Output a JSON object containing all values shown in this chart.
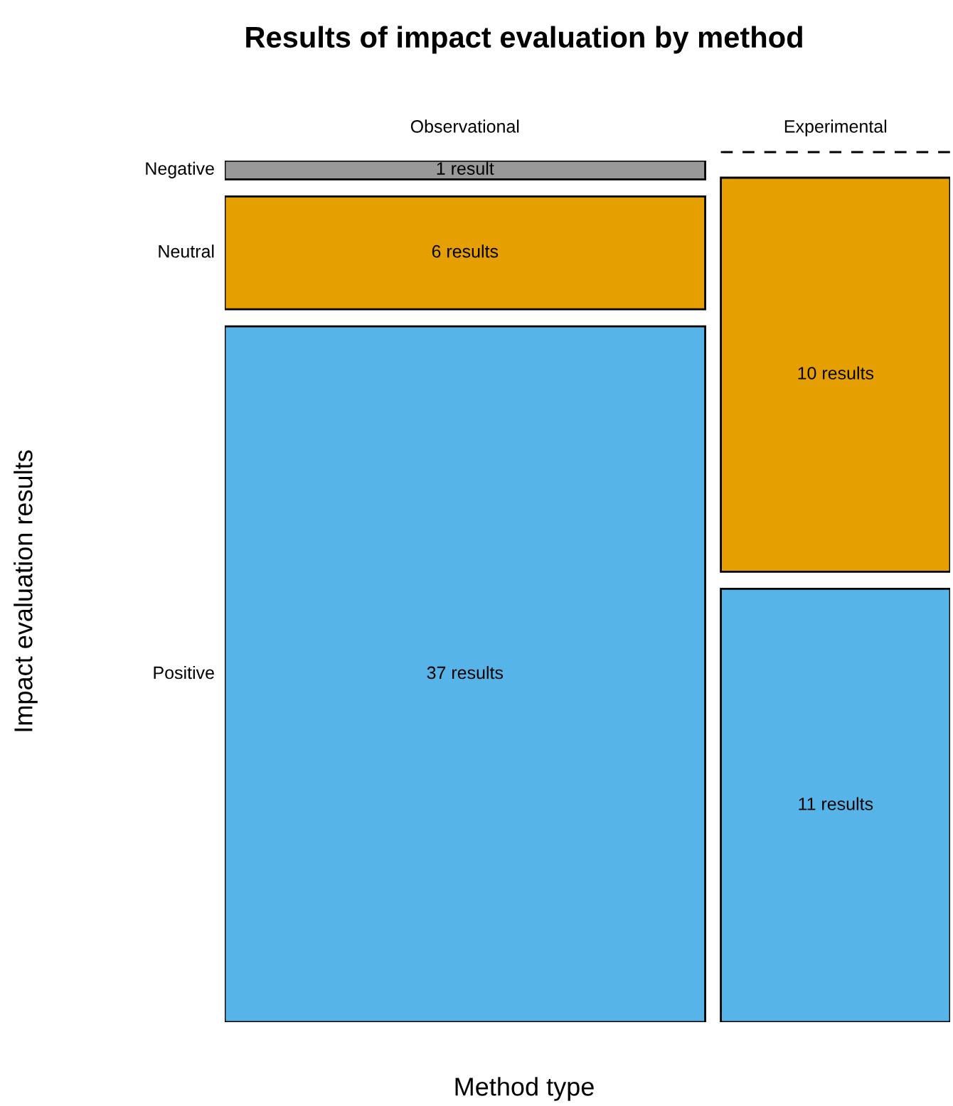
{
  "chart_data": {
    "type": "other",
    "title": "Results of impact evaluation by method",
    "xlabel": "Method type",
    "ylabel": "Impact evaluation results",
    "categories": [
      "Observational",
      "Experimental"
    ],
    "series": [
      {
        "name": "Negative",
        "color": "#999999",
        "values": [
          1,
          null
        ],
        "value_labels": [
          "1 result",
          null
        ]
      },
      {
        "name": "Neutral",
        "color": "#e69f00",
        "values": [
          6,
          10
        ],
        "value_labels": [
          "6 results",
          "10 results"
        ]
      },
      {
        "name": "Positive",
        "color": "#56b4e9",
        "values": [
          37,
          11
        ],
        "value_labels": [
          "37 results",
          "11 results"
        ]
      }
    ]
  }
}
